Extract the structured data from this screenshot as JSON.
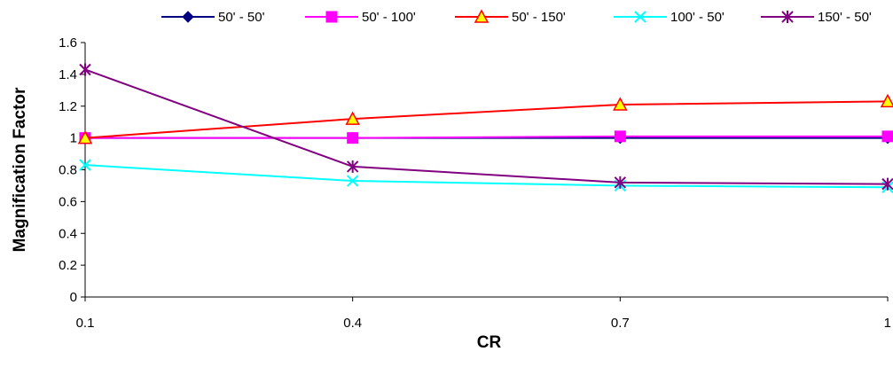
{
  "chart_data": {
    "type": "line",
    "xlabel": "CR",
    "ylabel": "Magnification Factor",
    "x": [
      0.1,
      0.4,
      0.7,
      1
    ],
    "x_tick_labels": [
      "0.1",
      "0.4",
      "0.7",
      "1"
    ],
    "ylim": [
      0,
      1.6
    ],
    "y_ticks": [
      0,
      0.2,
      0.4,
      0.6,
      0.8,
      1,
      1.2,
      1.4,
      1.6
    ],
    "y_tick_labels": [
      "0",
      "0.2",
      "0.4",
      "0.6",
      "0.8",
      "1",
      "1.2",
      "1.4",
      "1.6"
    ],
    "grid": false,
    "legend_position": "top",
    "series": [
      {
        "name": "50' - 50'",
        "values": [
          1.0,
          1.0,
          1.0,
          1.0
        ],
        "color": "#000080",
        "marker": "diamond",
        "marker_fill": "#000080"
      },
      {
        "name": "50' - 100'",
        "values": [
          1.0,
          1.0,
          1.01,
          1.01
        ],
        "color": "#ff00ff",
        "marker": "square",
        "marker_fill": "#ff00ff"
      },
      {
        "name": "50' - 150'",
        "values": [
          1.0,
          1.12,
          1.21,
          1.23
        ],
        "color": "#ff0000",
        "marker": "triangle",
        "marker_fill": "#ffff00"
      },
      {
        "name": "100' - 50'",
        "values": [
          0.83,
          0.73,
          0.7,
          0.69
        ],
        "color": "#00ffff",
        "marker": "x",
        "marker_fill": "none"
      },
      {
        "name": "150' - 50'",
        "values": [
          1.43,
          0.82,
          0.72,
          0.71
        ],
        "color": "#800080",
        "marker": "star",
        "marker_fill": "none"
      }
    ]
  }
}
